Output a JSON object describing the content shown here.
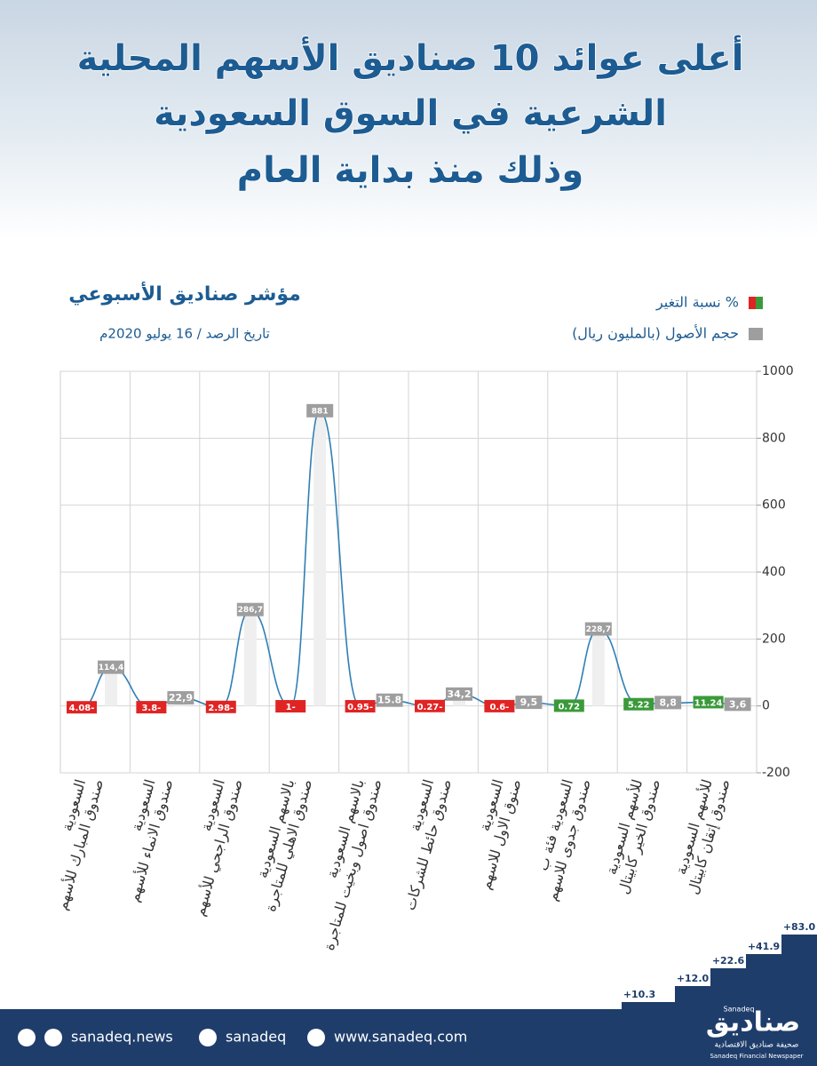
{
  "header": {
    "title_lines": [
      "أعلى عوائد 10 صناديق الأسهم المحلية",
      "الشرعية في السوق السعودية",
      "وذلك منذ بداية العام"
    ]
  },
  "chart_data": {
    "type": "bar-line",
    "title": "مؤشر صناديق الأسبوعي",
    "subtitle": "تاريخ الرصد / 16 يوليو 2020م",
    "categories": [
      [
        "صندوق المبارك للأسهم",
        "السعودية"
      ],
      [
        "صندوق الانماء للأسهم",
        "السعودية"
      ],
      [
        "صندوق الراجحي للأسهم",
        "السعودية"
      ],
      [
        "صندوق الاهلي للمتاجرة",
        "بالاسهم السعودية"
      ],
      [
        "صندوق اصول وبخيت للمتاجرة",
        "بالاسهم السعودية"
      ],
      [
        "صندوق حائط للشركات",
        "السعودية"
      ],
      [
        "صنوق الاول للاسهم",
        "السعودية"
      ],
      [
        "صندوق جدوى للاسهم",
        "السعودية فئة ب"
      ],
      [
        "صندوق الخير كابيتال",
        "للأسهم السعودية"
      ],
      [
        "صندوق إتقان كابيتال",
        "للأسهم السعودية"
      ]
    ],
    "series": [
      {
        "name": "نسبة التغير %",
        "color": "#e02424",
        "positive_color": "#3a9a3a",
        "values": [
          -4.08,
          -3.8,
          -2.98,
          -1,
          -0.95,
          -0.27,
          -0.6,
          0.72,
          5.22,
          11.24
        ],
        "value_labels": [
          "4.08-",
          "3.8-",
          "2.98-",
          "1-",
          "0.95-",
          "0.27-",
          "0.6-",
          "0.72",
          "5.22",
          "11.24"
        ]
      },
      {
        "name": "حجم الأصول (بالمليون ريال)",
        "color": "#9e9e9e",
        "values": [
          114.4,
          22.9,
          286.7,
          881,
          15.8,
          34.2,
          9.5,
          228.7,
          8.8,
          3.6
        ],
        "value_labels": [
          "114,4",
          "22,9",
          "286,7",
          "881",
          "15.8",
          "34,2",
          "9,5",
          "228,7",
          "8,8",
          "3,6"
        ]
      }
    ],
    "line_color": "#2f7fb5",
    "ylim": [
      -200,
      1000
    ],
    "yticks": [
      -200,
      0,
      200,
      400,
      600,
      800,
      1000
    ],
    "grid": true
  },
  "footer": {
    "steps": [
      "+10.3",
      "+12.0",
      "+22.6",
      "+41.9",
      "+83.0"
    ],
    "facebook_instagram": "sanadeq.news",
    "twitter": "sanadeq",
    "website": "www.sanadeq.com",
    "logo": "صناديق",
    "logo_latin": "Sanadeq",
    "tagline_ar": "صحيفة صناديق الاقتصادية",
    "tagline_en": "Sanadeq Financial Newspaper"
  }
}
